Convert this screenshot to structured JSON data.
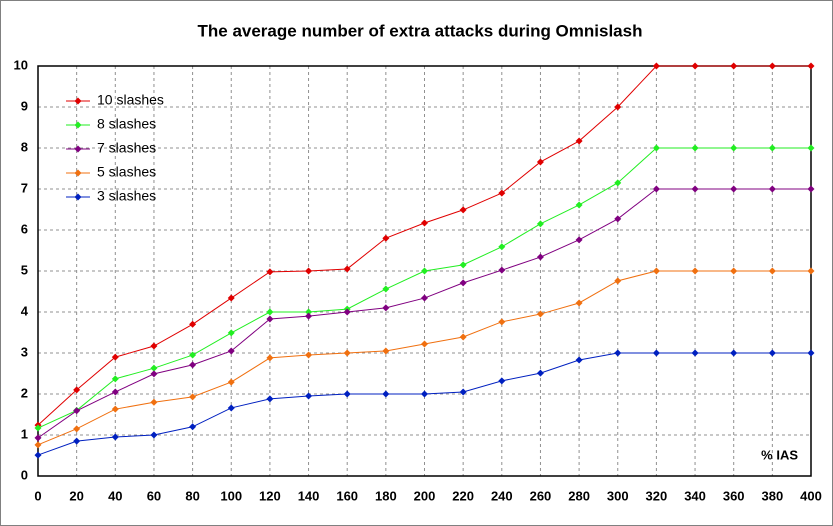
{
  "chart_data": {
    "type": "line",
    "title": "The average number of extra attacks during Omnislash",
    "x_label": "% IAS",
    "x": [
      0,
      20,
      40,
      60,
      80,
      100,
      120,
      140,
      160,
      180,
      200,
      220,
      240,
      260,
      280,
      300,
      320,
      340,
      360,
      380,
      400
    ],
    "xlim": [
      0,
      400
    ],
    "xticks": [
      0,
      20,
      40,
      60,
      80,
      100,
      120,
      140,
      160,
      180,
      200,
      220,
      240,
      260,
      280,
      300,
      320,
      340,
      360,
      380,
      400
    ],
    "ylim": [
      0,
      10
    ],
    "yticks": [
      0,
      1,
      2,
      3,
      4,
      5,
      6,
      7,
      8,
      9,
      10
    ],
    "grid": true,
    "legend": "upper left",
    "series": [
      {
        "name": "10 slashes",
        "color": "#e00000",
        "values": [
          1.24,
          2.1,
          2.9,
          3.17,
          3.7,
          4.34,
          4.98,
          5.0,
          5.05,
          5.8,
          6.17,
          6.49,
          6.9,
          7.66,
          8.17,
          9.0,
          10,
          10,
          10,
          10,
          10
        ]
      },
      {
        "name": "8 slashes",
        "color": "#22ee22",
        "values": [
          1.17,
          1.6,
          2.37,
          2.63,
          2.95,
          3.49,
          4.0,
          4.0,
          4.07,
          4.56,
          5.0,
          5.15,
          5.59,
          6.15,
          6.61,
          7.15,
          8,
          8,
          8,
          8,
          8
        ]
      },
      {
        "name": "7 slashes",
        "color": "#800080",
        "values": [
          0.93,
          1.59,
          2.05,
          2.49,
          2.71,
          3.05,
          3.83,
          3.9,
          4.0,
          4.1,
          4.34,
          4.71,
          5.02,
          5.34,
          5.76,
          6.27,
          7,
          7,
          7,
          7,
          7
        ]
      },
      {
        "name": "5 slashes",
        "color": "#f07010",
        "values": [
          0.76,
          1.15,
          1.63,
          1.8,
          1.93,
          2.29,
          2.88,
          2.95,
          3.0,
          3.05,
          3.22,
          3.39,
          3.76,
          3.95,
          4.22,
          4.76,
          5,
          5,
          5,
          5,
          5
        ]
      },
      {
        "name": "3 slashes",
        "color": "#0020c0",
        "values": [
          0.51,
          0.85,
          0.95,
          1.0,
          1.2,
          1.66,
          1.88,
          1.95,
          2.0,
          2.0,
          2.0,
          2.05,
          2.32,
          2.51,
          2.83,
          3.0,
          3,
          3,
          3,
          3,
          3
        ]
      }
    ]
  }
}
